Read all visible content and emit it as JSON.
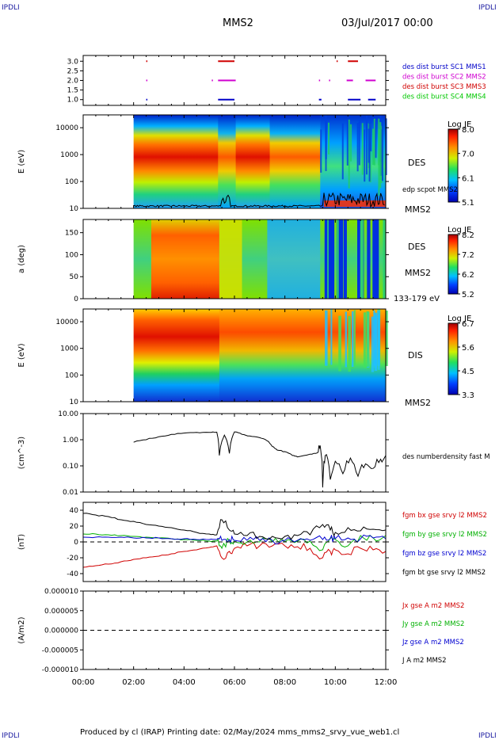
{
  "header": {
    "corner_label": "IPDLI",
    "title": "MMS2",
    "date_time": "03/Jul/2017 00:00"
  },
  "footer": {
    "text": "Produced by cl (IRAP)   Printing date: 02/May/2024   mms_mms2_srvy_vue_web1.cl"
  },
  "time_axis": {
    "range_hours": [
      0,
      12
    ],
    "ticks": [
      "00:00",
      "02:00",
      "04:00",
      "06:00",
      "08:00",
      "10:00",
      "12:00"
    ]
  },
  "chart_data": [
    {
      "type": "scatter",
      "name": "burst-availability",
      "ylim": [
        0.7,
        3.3
      ],
      "yticks": [
        "1.0",
        "1.5",
        "2.0",
        "2.5",
        "3.0"
      ],
      "legend": [
        {
          "label": "des dist burst SC1 MMS1",
          "color": "#0000c8"
        },
        {
          "label": "des dist burst SC2 MMS2",
          "color": "#d000d0"
        },
        {
          "label": "des dist burst SC3 MMS3",
          "color": "#d00000"
        },
        {
          "label": "des dist burst SC4 MMS4",
          "color": "#00c800"
        }
      ],
      "series": [
        {
          "sc": 3,
          "y": 3.0,
          "intervals": [
            [
              2.5,
              2.52
            ],
            [
              5.35,
              6.0
            ],
            [
              10.05,
              10.07
            ],
            [
              10.5,
              10.9
            ]
          ]
        },
        {
          "sc": 2,
          "y": 2.0,
          "intervals": [
            [
              2.5,
              2.52
            ],
            [
              5.1,
              5.13
            ],
            [
              5.35,
              6.05
            ],
            [
              9.35,
              9.38
            ],
            [
              9.75,
              9.78
            ],
            [
              10.45,
              10.7
            ],
            [
              11.2,
              11.6
            ]
          ]
        },
        {
          "sc": 1,
          "y": 1.0,
          "intervals": [
            [
              2.5,
              2.52
            ],
            [
              5.35,
              6.0
            ],
            [
              9.35,
              9.45
            ],
            [
              10.5,
              11.0
            ],
            [
              11.3,
              11.6
            ]
          ]
        }
      ]
    },
    {
      "type": "heatmap",
      "name": "des-energy",
      "ylabel": "E (eV)",
      "yscale": "log",
      "ylim": [
        10,
        30000
      ],
      "yticks": [
        "10",
        "100",
        "1000",
        "10000"
      ],
      "label": "DES",
      "sublabel": "MMS2",
      "overlay": "edp scpot MMS2",
      "colorbar": {
        "title": "Log JE",
        "min": 5.1,
        "max": 8.2,
        "ticks": [
          "8.0",
          "7.0",
          "6.1",
          "5.1"
        ]
      },
      "data_start_hours": 2.0
    },
    {
      "type": "heatmap",
      "name": "des-pitch",
      "ylabel": "a (deg)",
      "ylim": [
        0,
        180
      ],
      "yticks": [
        "0",
        "50",
        "100",
        "150"
      ],
      "label": "DES",
      "sublabel": "MMS2",
      "energy_band": "133-179 eV",
      "colorbar": {
        "title": "Log JE",
        "min": 5.2,
        "max": 8.2,
        "ticks": [
          "8.2",
          "7.2",
          "6.2",
          "5.2"
        ]
      },
      "data_start_hours": 2.0
    },
    {
      "type": "heatmap",
      "name": "dis-energy",
      "ylabel": "E (eV)",
      "yscale": "log",
      "ylim": [
        10,
        30000
      ],
      "yticks": [
        "10",
        "100",
        "1000",
        "10000"
      ],
      "label": "DIS",
      "sublabel": "MMS2",
      "colorbar": {
        "title": "Log JE",
        "min": 3.3,
        "max": 6.8,
        "ticks": [
          "6.7",
          "5.6",
          "4.5",
          "3.3"
        ]
      },
      "data_start_hours": 2.0
    },
    {
      "type": "line",
      "name": "number-density",
      "ylabel": "(cm^-3)",
      "yscale": "log",
      "ylim": [
        0.01,
        10
      ],
      "yticks": [
        "0.01",
        "0.10",
        "1.00",
        "10.00"
      ],
      "legend": [
        {
          "label": "des numberdensity fast M",
          "color": "#000000"
        }
      ],
      "x": [
        2.0,
        2.5,
        3.0,
        3.5,
        4.0,
        4.5,
        5.0,
        5.3,
        5.4,
        5.6,
        5.8,
        6.0,
        6.3,
        6.6,
        7.0,
        7.3,
        7.5,
        7.7,
        8.0,
        8.3,
        8.5,
        9.0,
        9.3,
        9.4,
        9.5,
        9.6,
        9.8,
        10.0,
        10.3,
        10.6,
        10.9,
        11.2,
        11.5,
        11.8,
        12.0
      ],
      "y": [
        0.8,
        1.0,
        1.3,
        1.6,
        1.8,
        1.9,
        1.9,
        1.95,
        0.25,
        1.5,
        0.3,
        2.0,
        1.6,
        1.4,
        1.2,
        0.9,
        0.55,
        0.4,
        0.35,
        0.25,
        0.22,
        0.28,
        0.32,
        0.6,
        0.015,
        0.25,
        0.03,
        0.15,
        0.05,
        0.2,
        0.04,
        0.12,
        0.08,
        0.18,
        0.25
      ]
    },
    {
      "type": "line",
      "name": "magnetic-field",
      "ylabel": "(nT)",
      "ylim": [
        -50,
        50
      ],
      "yticks": [
        "-40",
        "-20",
        "0",
        "20",
        "40"
      ],
      "zero_line": true,
      "legend": [
        {
          "label": "fgm bx gse srvy l2 MMS2",
          "color": "#d00000"
        },
        {
          "label": "fgm by gse srvy l2 MMS2",
          "color": "#00b000"
        },
        {
          "label": "fgm bz gse srvy l2 MMS2",
          "color": "#0000d0"
        },
        {
          "label": "fgm bt gse srvy l2 MMS2",
          "color": "#000000"
        }
      ],
      "x": [
        0.0,
        0.5,
        1.0,
        1.5,
        2.0,
        2.5,
        3.0,
        3.5,
        4.0,
        4.5,
        5.0,
        5.3,
        5.5,
        5.8,
        6.0,
        6.5,
        7.0,
        7.5,
        8.0,
        8.5,
        9.0,
        9.5,
        9.8,
        10.0,
        10.5,
        11.0,
        11.5,
        12.0
      ],
      "series": [
        {
          "name": "bx",
          "values": [
            -32,
            -30,
            -28,
            -25,
            -22,
            -20,
            -18,
            -15,
            -12,
            -10,
            -7,
            -5,
            -20,
            -12,
            -8,
            -5,
            -5,
            -5,
            -5,
            -6,
            -8,
            -20,
            -12,
            -10,
            -15,
            -8,
            -10,
            -12
          ]
        },
        {
          "name": "by",
          "values": [
            10,
            10,
            9,
            8,
            7,
            6,
            5,
            4,
            3,
            2,
            1,
            1,
            -8,
            2,
            1,
            0,
            0,
            0,
            0,
            1,
            1,
            -10,
            5,
            3,
            -5,
            8,
            5,
            8
          ]
        },
        {
          "name": "bz",
          "values": [
            6,
            6,
            6,
            6,
            5,
            5,
            5,
            4,
            4,
            3,
            3,
            3,
            2,
            3,
            2,
            2,
            2,
            2,
            2,
            2,
            2,
            3,
            4,
            4,
            5,
            4,
            5,
            4
          ]
        },
        {
          "name": "bt",
          "values": [
            36,
            34,
            32,
            28,
            26,
            22,
            20,
            18,
            15,
            12,
            10,
            9,
            28,
            15,
            10,
            8,
            7,
            7,
            7,
            8,
            9,
            22,
            15,
            12,
            18,
            14,
            16,
            15
          ]
        }
      ]
    },
    {
      "type": "line",
      "name": "current-density",
      "ylabel": "(A/m2)",
      "ylim": [
        -1e-05,
        1e-05
      ],
      "yticks": [
        "-0.000010",
        "-0.000005",
        "0.000000",
        "0.000005",
        "0.000010"
      ],
      "zero_line": true,
      "legend": [
        {
          "label": "Jx gse A m2 MMS2",
          "color": "#d00000"
        },
        {
          "label": "Jy gse A m2 MMS2",
          "color": "#00b000"
        },
        {
          "label": "Jz gse A m2 MMS2",
          "color": "#0000d0"
        },
        {
          "label": "J A m2 MMS2",
          "color": "#000000"
        }
      ]
    }
  ]
}
